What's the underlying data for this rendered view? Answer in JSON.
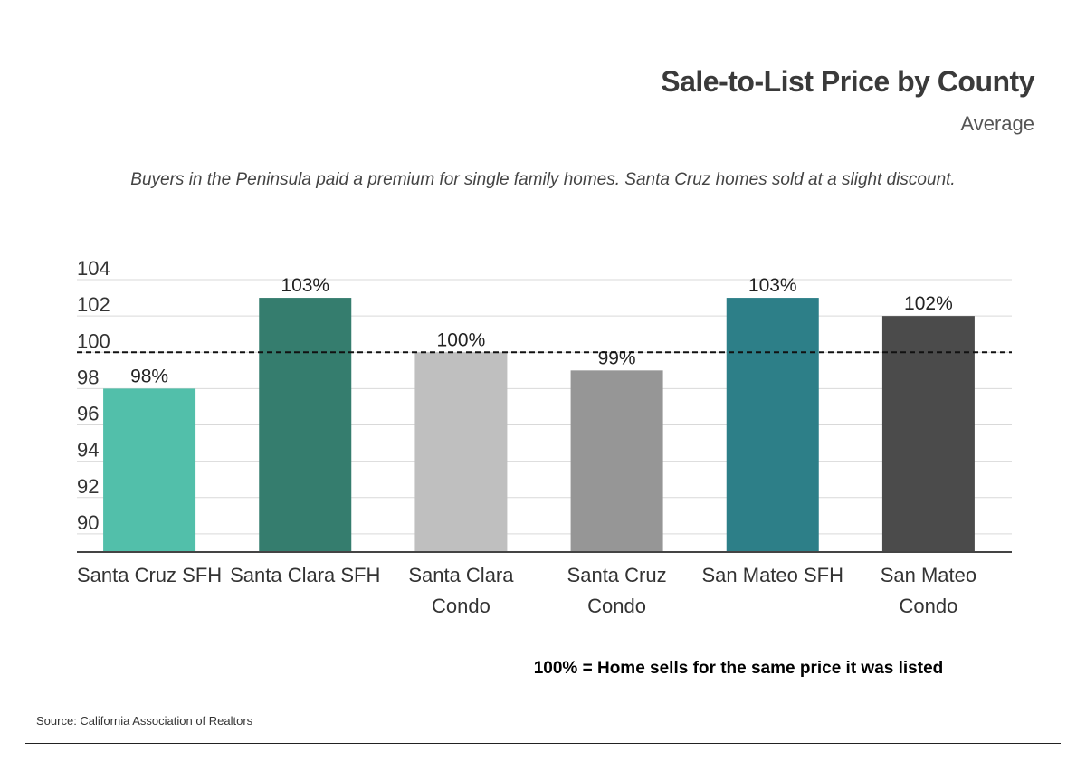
{
  "header": {
    "title": "Sale-to-List Price by County",
    "subtitle": "Average",
    "description": "Buyers in the Peninsula paid a premium for single family homes. Santa Cruz homes sold at a slight discount."
  },
  "footer": {
    "footnote": "100% = Home sells for the same price it was listed",
    "source": "Source:  California Association of Realtors"
  },
  "chart_data": {
    "type": "bar",
    "title": "Sale-to-List Price by County",
    "subtitle": "Average",
    "xlabel": "",
    "ylabel": "",
    "ylim": [
      89,
      104
    ],
    "yticks": [
      90,
      92,
      94,
      96,
      98,
      100,
      102,
      104
    ],
    "grid": true,
    "reference_line": {
      "value": 100,
      "style": "dashed"
    },
    "categories": [
      [
        "Santa Cruz SFH"
      ],
      [
        "Santa Clara SFH"
      ],
      [
        "Santa Clara",
        "Condo"
      ],
      [
        "Santa Cruz",
        "Condo"
      ],
      [
        "San Mateo SFH"
      ],
      [
        "San Mateo",
        "Condo"
      ]
    ],
    "values": [
      98,
      103,
      100,
      99,
      103,
      102
    ],
    "data_labels": [
      "98%",
      "103%",
      "100%",
      "99%",
      "103%",
      "102%"
    ],
    "colors": [
      "#52bfaa",
      "#357d6e",
      "#bfbfbf",
      "#969696",
      "#2d7f88",
      "#4b4b4b"
    ]
  }
}
